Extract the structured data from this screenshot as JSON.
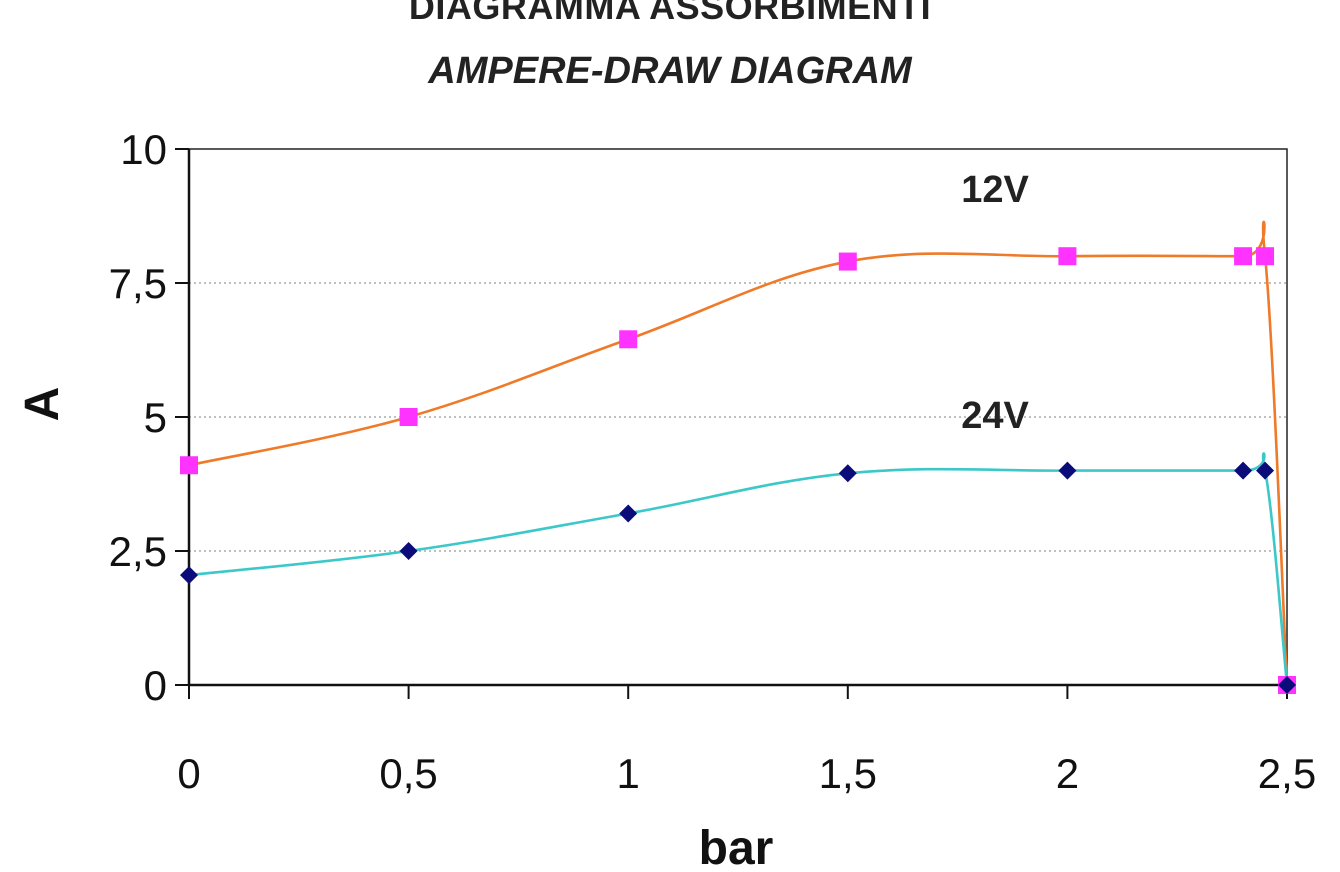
{
  "chart_data": {
    "type": "line",
    "title": "DIAGRAMMA ASSORBIMENTI",
    "subtitle": "AMPERE-DRAW DIAGRAM",
    "xlabel": "bar",
    "ylabel": "A",
    "xlim": [
      0,
      2.5
    ],
    "ylim": [
      0,
      10
    ],
    "x_ticks": [
      "0",
      "0,5",
      "1",
      "1,5",
      "2",
      "2,5"
    ],
    "x_tick_values": [
      0,
      0.5,
      1,
      1.5,
      2,
      2.5
    ],
    "y_ticks": [
      "0",
      "2,5",
      "5",
      "7,5",
      "10"
    ],
    "y_tick_values": [
      0,
      2.5,
      5,
      7.5,
      10
    ],
    "grid": "horizontal-dotted",
    "series": [
      {
        "name": "12V",
        "line_color": "#ee7a2a",
        "marker_color": "#ff33ff",
        "marker": "square",
        "x": [
          0,
          0.5,
          1,
          1.5,
          2,
          2.4,
          2.45,
          2.5
        ],
        "values": [
          4.1,
          5.0,
          6.45,
          7.9,
          8.0,
          8.0,
          8.0,
          0
        ]
      },
      {
        "name": "24V",
        "line_color": "#3cc8c8",
        "marker_color": "#0b0b7a",
        "marker": "diamond",
        "x": [
          0,
          0.5,
          1,
          1.5,
          2,
          2.4,
          2.45,
          2.5
        ],
        "values": [
          2.05,
          2.5,
          3.2,
          3.95,
          4.0,
          4.0,
          4.0,
          0
        ]
      }
    ]
  }
}
